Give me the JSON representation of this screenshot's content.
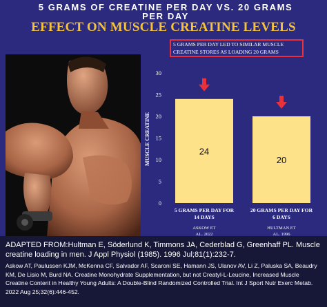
{
  "header": {
    "line1": "5 GRAMS OF CREATINE PER DAY VS. 20 GRAMS PER DAY",
    "line2": "EFFECT ON MUSCLE CREATINE LEVELS"
  },
  "callout": "5 grams per day led to similar muscle creatine stores as loading 20 grams",
  "colors": {
    "background": "#2b2a7e",
    "bar": "#fde28a",
    "arrow": "#e8313a",
    "title2": "#f5c33b",
    "footer": "#171737"
  },
  "chart_data": {
    "type": "bar",
    "ylabel": "MUSCLE CREATINE",
    "ylim": [
      0,
      30
    ],
    "yticks": [
      0,
      5,
      10,
      15,
      20,
      25,
      30
    ],
    "grid": false,
    "categories": [
      "5 GRAMS PER DAY FOR 14 DAYS",
      "20 GRAMS PER DAY FOR 6 DAYS"
    ],
    "sources": [
      "ASKOW ET AL. 2022",
      "HULTMAN ET AL. 1996"
    ],
    "values": [
      24,
      20
    ],
    "data_labels": [
      "24",
      "20"
    ]
  },
  "footer": {
    "line1": "ADAPTED FROM:Hultman E, Söderlund K, Timmons JA, Cederblad G, Greenhaff PL. Muscle creatine loading in men. J Appl Physiol (1985). 1996 Jul;81(1):232-7.",
    "line2": "Askow AT, Paulussen KJM, McKenna CF, Salvador AF, Scaroni SE, Hamann JS, Ulanov AV, Li Z, Paluska SA, Beaudry KM, De Lisio M, Burd NA. Creatine Monohydrate Supplementation, but not Creatyl-L-Leucine, Increased Muscle Creatine Content in Healthy Young Adults: A Double-Blind Randomized Controlled Trial. Int J Sport Nutr Exerc Metab. 2022 Aug 25;32(6):446-452."
  }
}
